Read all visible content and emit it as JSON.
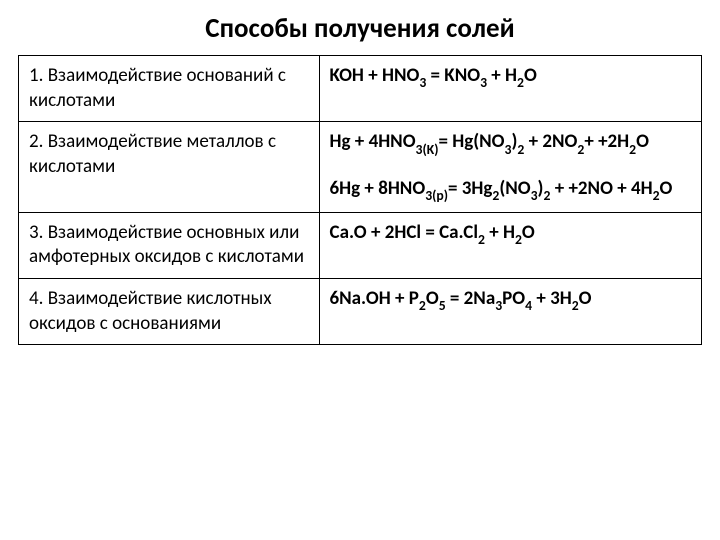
{
  "title": "Способы получения солей",
  "rows": [
    {
      "label": "1. Взаимодействие оснований с кислотами",
      "equation": "KOH + HNO₃ = KNO₃ + H₂O"
    },
    {
      "label": "2. Взаимодействие металлов с кислотами",
      "equation": "Hg + 4HNO₃₍к₎= Hg(NO₃)₂ + 2NO₂+ +2H₂O",
      "equation2": "6Hg + 8HNO₃₍р₎= 3Hg₂(NO₃)₂ + +2NO + 4H₂O"
    },
    {
      "label": "3. Взаимодействие основных или амфотерных оксидов с кислотами",
      "equation": "Ca.O + 2HCl = Ca.Cl₂ + H₂O"
    },
    {
      "label": "4. Взаимодействие кислотных оксидов с основаниями",
      "equation": "6Na.OH + P₂O₅ = 2Na₃PO₄ + 3H₂O"
    }
  ],
  "colors": {
    "text": "#000000",
    "border": "#000000",
    "background": "#ffffff"
  }
}
